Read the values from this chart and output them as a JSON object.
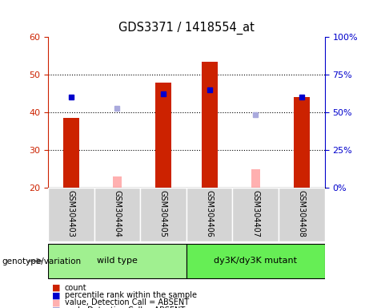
{
  "title": "GDS3371 / 1418554_at",
  "samples": [
    "GSM304403",
    "GSM304404",
    "GSM304405",
    "GSM304406",
    "GSM304407",
    "GSM304408"
  ],
  "group_labels": [
    "wild type",
    "dy3K/dy3K mutant"
  ],
  "red_bars": [
    38.5,
    null,
    48.0,
    53.5,
    null,
    44.0
  ],
  "pink_bars": [
    null,
    23.0,
    null,
    null,
    25.0,
    null
  ],
  "blue_dots": [
    44.0,
    null,
    45.0,
    46.0,
    null,
    44.0
  ],
  "lightblue_dots": [
    null,
    41.0,
    null,
    null,
    39.5,
    null
  ],
  "ymin": 20,
  "ymax": 60,
  "yticks_left": [
    20,
    30,
    40,
    50,
    60
  ],
  "yticks_right": [
    0,
    25,
    50,
    75,
    100
  ],
  "bar_color_red": "#cc2200",
  "bar_color_pink": "#ffb0b0",
  "dot_color_blue": "#0000cc",
  "dot_color_lightblue": "#aaaadd",
  "tick_color_left": "#cc2200",
  "tick_color_right": "#0000cc",
  "genotype_label": "genotype/variation",
  "legend_items": [
    {
      "label": "count",
      "color": "#cc2200"
    },
    {
      "label": "percentile rank within the sample",
      "color": "#0000cc"
    },
    {
      "label": "value, Detection Call = ABSENT",
      "color": "#ffb0b0"
    },
    {
      "label": "rank, Detection Call = ABSENT",
      "color": "#aaaadd"
    }
  ]
}
